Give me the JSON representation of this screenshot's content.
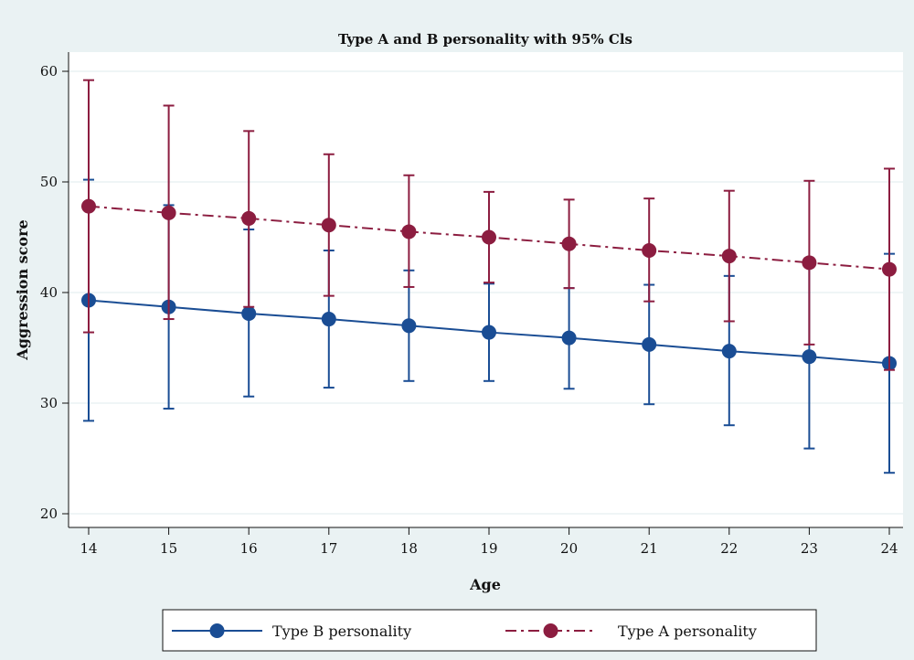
{
  "colors": {
    "background": "#eaf2f3",
    "plot_background": "#ffffff",
    "grid": "#eaf2f3",
    "series_b": "#1a4d94",
    "series_a": "#8c1d40"
  },
  "chart_data": {
    "type": "line",
    "title": "Type A and B personality with 95% Cls",
    "xlabel": "Age",
    "ylabel": "Aggression score",
    "xlim": [
      14,
      24
    ],
    "ylim": [
      20,
      60
    ],
    "x_ticks": [
      14,
      15,
      16,
      17,
      18,
      19,
      20,
      21,
      22,
      23,
      24
    ],
    "y_ticks": [
      20,
      30,
      40,
      50,
      60
    ],
    "grid": true,
    "legend_position": "bottom",
    "x": [
      14,
      15,
      16,
      17,
      18,
      19,
      20,
      21,
      22,
      23,
      24
    ],
    "series": [
      {
        "name": "Type B personality",
        "line_style": "solid",
        "color": "#1a4d94",
        "values": [
          39.3,
          38.7,
          38.1,
          37.6,
          37.0,
          36.4,
          35.9,
          35.3,
          34.7,
          34.2,
          33.6
        ],
        "ci_low": [
          28.4,
          29.5,
          30.6,
          31.4,
          32.0,
          32.0,
          31.3,
          29.9,
          28.0,
          25.9,
          23.7
        ],
        "ci_high": [
          50.2,
          47.9,
          45.7,
          43.8,
          42.0,
          40.8,
          40.4,
          40.7,
          41.5,
          42.5,
          43.5
        ]
      },
      {
        "name": "Type A personality",
        "line_style": "dash-dot",
        "color": "#8c1d40",
        "values": [
          47.8,
          47.2,
          46.7,
          46.1,
          45.5,
          45.0,
          44.4,
          43.8,
          43.3,
          42.7,
          42.1
        ],
        "ci_low": [
          36.4,
          37.6,
          38.7,
          39.7,
          40.5,
          40.9,
          40.4,
          39.2,
          37.4,
          35.3,
          33.0
        ],
        "ci_high": [
          59.2,
          56.9,
          54.6,
          52.5,
          50.6,
          49.1,
          48.4,
          48.5,
          49.2,
          50.1,
          51.2
        ]
      }
    ]
  }
}
